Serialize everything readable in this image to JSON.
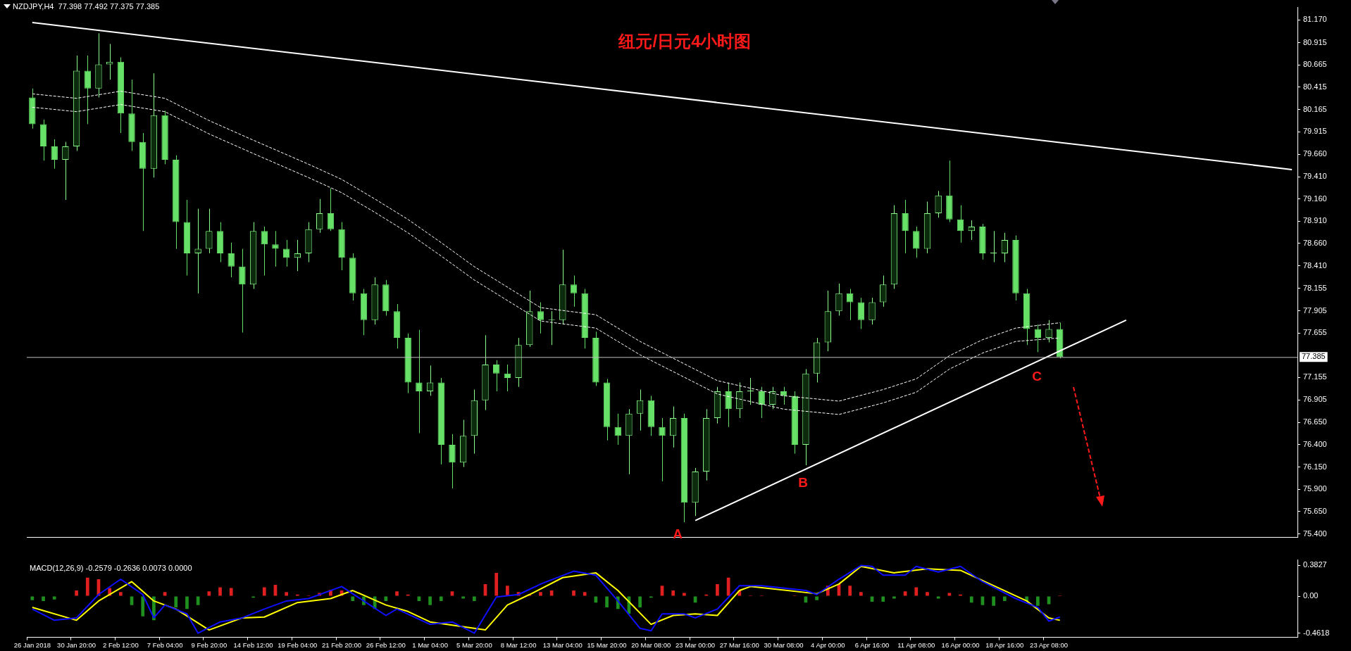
{
  "chart_data": [
    {
      "type": "candlestick",
      "title": "纽元/日元4小时图",
      "subtitle": "NZDJPY,H4  77.398 77.492 77.375 77.385",
      "colors": [
        "#66e066",
        "#66e066",
        "#66e066",
        "#8cff8c",
        "#8cff8c",
        "#66e066",
        "#8cff8c",
        "#8cff8c",
        "#66e066",
        "#66e066",
        "#66e066",
        "#8cff8c",
        "#66e066",
        "#66e066",
        "#66e066",
        "#8cff8c",
        "#8cff8c",
        "#66e066",
        "#66e066",
        "#66e066",
        "#8cff8c",
        "#66e066",
        "#66e066",
        "#66e066",
        "#8cff8c",
        "#8cff8c",
        "#8cff8c",
        "#66e066",
        "#66e066",
        "#66e066",
        "#66e066",
        "#8cff8c",
        "#66e066",
        "#66e066",
        "#66e066",
        "#66e066",
        "#8cff8c",
        "#66e066",
        "#66e066",
        "#8cff8c",
        "#8cff8c",
        "#8cff8c",
        "#66e066",
        "#66e066",
        "#8cff8c",
        "#8cff8c",
        "#66e066",
        "#8cff8c",
        "#8cff8c",
        "#66e066",
        "#66e066",
        "#66e066",
        "#66e066",
        "#66e066",
        "#8cff8c",
        "#8cff8c",
        "#66e066",
        "#66e066",
        "#8cff8c",
        "#66e066",
        "#8cff8c",
        "#8cff8c",
        "#8cff8c",
        "#66e066",
        "#8cff8c",
        "#8cff8c",
        "#66e066",
        "#8cff8c",
        "#66e066",
        "#66e066",
        "#8cff8c",
        "#8cff8c",
        "#8cff8c",
        "#8cff8c",
        "#66e066",
        "#66e066",
        "#8cff8c",
        "#8cff8c",
        "#8cff8c",
        "#66e066",
        "#66e066",
        "#8cff8c",
        "#8cff8c",
        "#66e066",
        "#66e066",
        "#8cff8c",
        "#66e066",
        "#8cff8c",
        "#8cff8c",
        "#66e066",
        "#66e066",
        "#66e066",
        "#8cff8c",
        "#66e066",
        null,
        null,
        null,
        null,
        null,
        null,
        null,
        null,
        null,
        null,
        null,
        null,
        null,
        null,
        null,
        null,
        null,
        null,
        null,
        null,
        null
      ],
      "categories": [
        null,
        null,
        null,
        null,
        null,
        null,
        null,
        null,
        null,
        null,
        null,
        null,
        null,
        null,
        null,
        null,
        null,
        null,
        null,
        null,
        null,
        null,
        null,
        null,
        null,
        null,
        null,
        null,
        null,
        null,
        null,
        null,
        null,
        null,
        null,
        null,
        null,
        null,
        null,
        null,
        null,
        null,
        null,
        null,
        null,
        null,
        null,
        null,
        null,
        null,
        null,
        null,
        null,
        null,
        null,
        null,
        null,
        null,
        null,
        null,
        null,
        null,
        null,
        null,
        null,
        null,
        null,
        null,
        null,
        null,
        null,
        null,
        null,
        null,
        null,
        null,
        null,
        null,
        null,
        null,
        null,
        null,
        null,
        null,
        null,
        null,
        null,
        null,
        null,
        null,
        null,
        null,
        null,
        null,
        null,
        null,
        null,
        null,
        null,
        null,
        null,
        null,
        null,
        null,
        null,
        null,
        null,
        null,
        null,
        null,
        null,
        null,
        null,
        null,
        null
      ],
      "ohlc": [
        [
          80.3,
          80.4,
          79.95,
          80.0
        ],
        [
          80.0,
          80.05,
          79.59,
          79.75
        ],
        [
          79.75,
          79.83,
          79.5,
          79.6
        ],
        [
          79.6,
          79.8,
          79.15,
          79.75
        ],
        [
          79.75,
          80.77,
          79.7,
          80.6
        ],
        [
          80.6,
          80.77,
          80.0,
          80.4
        ],
        [
          80.4,
          81.02,
          80.3,
          80.67
        ],
        [
          80.67,
          80.9,
          80.5,
          80.7
        ],
        [
          80.7,
          80.75,
          79.9,
          80.12
        ],
        [
          80.12,
          80.5,
          79.7,
          79.8
        ],
        [
          79.8,
          79.9,
          78.8,
          79.5
        ],
        [
          79.5,
          80.57,
          79.4,
          80.1
        ],
        [
          80.1,
          80.15,
          79.55,
          79.6
        ],
        [
          79.6,
          79.65,
          78.6,
          78.9
        ],
        [
          78.9,
          79.15,
          78.3,
          78.55
        ],
        [
          78.55,
          79.05,
          78.1,
          78.6
        ],
        [
          78.6,
          79.05,
          78.55,
          78.8
        ],
        [
          78.8,
          78.9,
          78.45,
          78.55
        ],
        [
          78.55,
          78.67,
          78.28,
          78.4
        ],
        [
          78.4,
          78.6,
          77.66,
          78.2
        ],
        [
          78.2,
          78.9,
          78.15,
          78.8
        ],
        [
          78.8,
          78.85,
          78.3,
          78.65
        ],
        [
          78.65,
          78.8,
          78.4,
          78.6
        ],
        [
          78.6,
          78.7,
          78.4,
          78.5
        ],
        [
          78.5,
          78.7,
          78.35,
          78.55
        ],
        [
          78.55,
          78.9,
          78.45,
          78.82
        ],
        [
          78.82,
          79.16,
          78.78,
          79.0
        ],
        [
          79.0,
          79.28,
          78.8,
          78.82
        ],
        [
          78.82,
          78.9,
          78.36,
          78.5
        ],
        [
          78.5,
          78.55,
          78.02,
          78.1
        ],
        [
          78.1,
          78.15,
          77.63,
          77.8
        ],
        [
          77.8,
          78.28,
          77.75,
          78.2
        ],
        [
          78.2,
          78.25,
          77.85,
          77.9
        ],
        [
          77.9,
          77.98,
          77.48,
          77.6
        ],
        [
          77.6,
          77.65,
          76.98,
          77.1
        ],
        [
          77.1,
          77.69,
          76.53,
          77.0
        ],
        [
          77.0,
          77.29,
          76.95,
          77.1
        ],
        [
          77.1,
          77.15,
          76.18,
          76.4
        ],
        [
          76.4,
          76.52,
          75.91,
          76.2
        ],
        [
          76.2,
          76.68,
          76.15,
          76.5
        ],
        [
          76.5,
          77.02,
          76.3,
          76.9
        ],
        [
          76.9,
          77.63,
          76.79,
          77.3
        ],
        [
          77.3,
          77.35,
          77.0,
          77.2
        ],
        [
          77.2,
          77.3,
          77.0,
          77.15
        ],
        [
          77.15,
          77.6,
          77.05,
          77.52
        ],
        [
          77.52,
          78.13,
          77.5,
          77.9
        ],
        [
          77.9,
          78.0,
          77.65,
          77.8
        ],
        [
          77.8,
          77.9,
          77.52,
          77.8
        ],
        [
          77.8,
          78.59,
          77.75,
          78.2
        ],
        [
          78.2,
          78.3,
          77.95,
          78.1
        ],
        [
          78.1,
          78.15,
          77.48,
          77.6
        ],
        [
          77.6,
          77.67,
          77.06,
          77.1
        ],
        [
          77.1,
          77.14,
          76.45,
          76.6
        ],
        [
          76.6,
          76.75,
          76.4,
          76.5
        ],
        [
          76.5,
          76.8,
          76.07,
          76.75
        ],
        [
          76.75,
          77.02,
          76.56,
          76.9
        ],
        [
          76.9,
          76.95,
          76.5,
          76.6
        ],
        [
          76.6,
          76.7,
          75.99,
          76.5
        ],
        [
          76.5,
          76.83,
          76.37,
          76.7
        ],
        [
          76.7,
          76.75,
          75.53,
          75.75
        ],
        [
          75.75,
          76.14,
          75.6,
          76.1
        ],
        [
          76.1,
          76.8,
          76.0,
          76.7
        ],
        [
          76.7,
          77.05,
          76.64,
          77.0
        ],
        [
          77.0,
          77.1,
          76.6,
          76.8
        ],
        [
          76.8,
          77.1,
          76.7,
          77.0
        ],
        [
          77.0,
          77.15,
          76.85,
          77.0
        ],
        [
          77.0,
          77.05,
          76.7,
          76.85
        ],
        [
          76.85,
          77.05,
          76.8,
          77.0
        ],
        [
          77.0,
          77.05,
          76.85,
          76.95
        ],
        [
          76.95,
          77.0,
          76.3,
          76.4
        ],
        [
          76.4,
          77.25,
          76.17,
          77.2
        ],
        [
          77.2,
          77.6,
          77.1,
          77.55
        ],
        [
          77.55,
          78.13,
          77.45,
          77.9
        ],
        [
          77.9,
          78.21,
          77.85,
          78.1
        ],
        [
          78.1,
          78.15,
          77.8,
          78.0
        ],
        [
          78.0,
          78.05,
          77.7,
          77.8
        ],
        [
          77.8,
          78.05,
          77.75,
          78.0
        ],
        [
          78.0,
          78.3,
          77.95,
          78.2
        ],
        [
          78.2,
          79.09,
          78.15,
          79.0
        ],
        [
          79.0,
          79.15,
          78.55,
          78.8
        ],
        [
          78.8,
          78.85,
          78.5,
          78.6
        ],
        [
          78.6,
          79.13,
          78.55,
          79.0
        ],
        [
          79.0,
          79.25,
          78.95,
          79.2
        ],
        [
          79.2,
          79.59,
          78.9,
          78.93
        ],
        [
          78.93,
          79.09,
          78.67,
          78.8
        ],
        [
          78.8,
          78.92,
          78.7,
          78.85
        ],
        [
          78.85,
          78.88,
          78.48,
          78.55
        ],
        [
          78.55,
          78.8,
          78.45,
          78.55
        ],
        [
          78.55,
          78.78,
          78.45,
          78.7
        ],
        [
          78.7,
          78.75,
          78.02,
          78.1
        ],
        [
          78.1,
          78.15,
          77.52,
          77.7
        ],
        [
          77.7,
          77.75,
          77.44,
          77.6
        ],
        [
          77.6,
          77.8,
          77.55,
          77.7
        ],
        [
          77.7,
          77.77,
          77.37,
          77.385
        ],
        null,
        null,
        null,
        null,
        null,
        null,
        null,
        null,
        null,
        null,
        null,
        null,
        null,
        null,
        null,
        null,
        null,
        null,
        null,
        null,
        null
      ],
      "series": [
        {
          "type": "line",
          "color": "#ffffff",
          "line_style": "dashed",
          "values": [
            80.34,
            null,
            null,
            null,
            80.29,
            null,
            null,
            null,
            80.37,
            null,
            null,
            null,
            80.29,
            null,
            null,
            null,
            80.04,
            null,
            null,
            null,
            79.82,
            null,
            null,
            null,
            null,
            79.55,
            null,
            null,
            79.38,
            null,
            null,
            79.16,
            null,
            null,
            78.93,
            null,
            null,
            78.67,
            null,
            null,
            78.4,
            null,
            null,
            null,
            null,
            null,
            77.94,
            null,
            null,
            null,
            null,
            77.86,
            null,
            null,
            null,
            77.56,
            null,
            null,
            null,
            null,
            null,
            null,
            77.12,
            null,
            null,
            null,
            null,
            null,
            76.95,
            null,
            null,
            null,
            null,
            76.89,
            null,
            null,
            null,
            77.02,
            null,
            null,
            77.14,
            null,
            null,
            77.4,
            null,
            null,
            77.58,
            null,
            null,
            77.71,
            null,
            null,
            null,
            77.77,
            null,
            null,
            null,
            null,
            null,
            null,
            null,
            null,
            null,
            null,
            null,
            null,
            null,
            null,
            null,
            null,
            null,
            null,
            null,
            null,
            null
          ]
        },
        {
          "type": "line",
          "color": "#ffffff",
          "line_style": "dashed",
          "values": [
            80.19,
            null,
            null,
            null,
            80.14,
            null,
            null,
            null,
            80.22,
            null,
            null,
            null,
            80.14,
            null,
            null,
            null,
            79.89,
            null,
            null,
            null,
            79.67,
            null,
            null,
            null,
            null,
            79.4,
            null,
            null,
            79.23,
            null,
            null,
            79.01,
            null,
            null,
            78.78,
            null,
            null,
            78.52,
            null,
            null,
            78.25,
            null,
            null,
            null,
            null,
            null,
            77.79,
            null,
            null,
            null,
            null,
            77.71,
            null,
            null,
            null,
            77.41,
            null,
            null,
            null,
            null,
            null,
            null,
            76.97,
            null,
            null,
            null,
            null,
            null,
            76.8,
            null,
            null,
            null,
            null,
            76.74,
            null,
            null,
            null,
            76.87,
            null,
            null,
            76.99,
            null,
            null,
            77.25,
            null,
            null,
            77.43,
            null,
            null,
            77.56,
            null,
            null,
            null,
            77.6,
            null,
            null,
            null,
            null,
            null,
            null,
            null,
            null,
            null,
            null,
            null,
            null,
            null,
            null,
            null,
            null,
            null,
            null,
            null,
            null,
            null
          ]
        },
        {
          "type": "line",
          "color": "#ffffff",
          "line_style": "solid",
          "values": [
            81.14,
            null,
            null,
            null,
            null,
            null,
            null,
            null,
            null,
            null,
            null,
            null,
            null,
            null,
            null,
            null,
            null,
            null,
            null,
            null,
            null,
            null,
            null,
            null,
            null,
            null,
            null,
            null,
            null,
            null,
            null,
            null,
            null,
            null,
            null,
            null,
            null,
            null,
            null,
            null,
            null,
            null,
            null,
            null,
            null,
            null,
            null,
            null,
            null,
            null,
            null,
            null,
            null,
            null,
            null,
            null,
            null,
            null,
            null,
            null,
            null,
            null,
            null,
            null,
            null,
            null,
            null,
            null,
            null,
            null,
            null,
            null,
            null,
            null,
            null,
            null,
            null,
            null,
            null,
            null,
            null,
            null,
            null,
            null,
            null,
            null,
            null,
            null,
            null,
            null,
            null,
            null,
            null,
            null,
            null,
            null,
            null,
            null,
            null,
            null,
            null,
            null,
            null,
            null,
            null,
            null,
            null,
            null,
            null,
            null,
            null,
            null,
            null,
            null,
            79.49
          ]
        },
        {
          "type": "line",
          "color": "#ffffff",
          "line_style": "solid",
          "values": [
            null,
            null,
            null,
            null,
            null,
            null,
            null,
            null,
            null,
            null,
            null,
            null,
            null,
            null,
            null,
            null,
            null,
            null,
            null,
            null,
            null,
            null,
            null,
            null,
            null,
            null,
            null,
            null,
            null,
            null,
            null,
            null,
            null,
            null,
            null,
            null,
            null,
            null,
            null,
            null,
            null,
            null,
            null,
            null,
            null,
            null,
            null,
            null,
            null,
            null,
            null,
            null,
            null,
            null,
            null,
            null,
            null,
            null,
            null,
            null,
            75.55,
            null,
            null,
            null,
            null,
            null,
            null,
            null,
            null,
            null,
            null,
            null,
            null,
            null,
            null,
            null,
            null,
            null,
            null,
            null,
            null,
            null,
            null,
            null,
            null,
            null,
            null,
            null,
            null,
            null,
            null,
            null,
            null,
            null,
            null,
            null,
            null,
            null,
            null,
            77.8,
            null,
            null,
            null,
            null,
            null,
            null,
            null,
            null,
            null,
            null,
            null,
            null,
            null,
            null,
            null
          ]
        }
      ],
      "ylim": [
        75.36,
        81.31
      ],
      "yticks": [
        {
          "value": 81.17,
          "label": "81.170"
        },
        80.915,
        80.665,
        80.415,
        80.165,
        79.915,
        {
          "value": 79.66,
          "label": "79.660"
        },
        {
          "value": 79.41,
          "label": "79.410"
        },
        {
          "value": 79.16,
          "label": "79.160"
        },
        {
          "value": 78.91,
          "label": "78.910"
        },
        {
          "value": 78.66,
          "label": "78.660"
        },
        {
          "value": 78.41,
          "label": "78.410"
        },
        78.155,
        77.905,
        77.655,
        77.155,
        76.905,
        {
          "value": 76.65,
          "label": "76.650"
        },
        {
          "value": 76.4,
          "label": "76.400"
        },
        {
          "value": 76.15,
          "label": "76.150"
        },
        {
          "value": 75.9,
          "label": "75.900"
        },
        {
          "value": 75.65,
          "label": "75.650"
        },
        {
          "value": 75.4,
          "label": "75.400"
        }
      ],
      "ref_lines": [
        {
          "axis": "y",
          "value": 77.385,
          "label": "77.385",
          "color": "#c0c0c0"
        }
      ],
      "annotations": [
        "A",
        "B",
        "C"
      ]
    },
    {
      "type": "bar",
      "title": "MACD(12,26,9) -0.2579 -0.2636 0.0073 0.0000",
      "categories": [
        "26 Jan 2018",
        null,
        null,
        null,
        "30 Jan 20:00",
        null,
        null,
        null,
        "2 Feb 12:00",
        null,
        null,
        null,
        "7 Feb 04:00",
        null,
        null,
        null,
        "9 Feb 20:00",
        null,
        null,
        null,
        "14 Feb 12:00",
        null,
        null,
        null,
        "19 Feb 04:00",
        null,
        null,
        null,
        "21 Feb 20:00",
        null,
        null,
        null,
        "26 Feb 12:00",
        null,
        null,
        null,
        "1 Mar 04:00",
        null,
        null,
        null,
        "5 Mar 20:00",
        null,
        null,
        null,
        "8 Mar 12:00",
        null,
        null,
        null,
        "13 Mar 04:00",
        null,
        null,
        null,
        "15 Mar 20:00",
        null,
        null,
        null,
        "20 Mar 08:00",
        null,
        null,
        null,
        "23 Mar 00:00",
        null,
        null,
        null,
        "27 Mar 16:00",
        null,
        null,
        null,
        "30 Mar 08:00",
        null,
        null,
        null,
        "4 Apr 00:00",
        null,
        null,
        null,
        "6 Apr 16:00",
        null,
        null,
        null,
        "11 Apr 08:00",
        null,
        null,
        null,
        "16 Apr 00:00",
        null,
        null,
        null,
        "18 Apr 16:00",
        null,
        null,
        null,
        "23 Apr 08:00",
        null,
        null,
        null,
        null,
        null,
        null,
        null,
        null,
        null,
        null,
        null,
        null,
        null,
        null,
        null,
        null,
        null,
        null,
        null,
        null,
        null,
        null
      ],
      "series": [
        {
          "type": "bar",
          "color": "#e02020",
          "values": [
            null,
            null,
            null,
            null,
            0.07,
            0.23,
            0.21,
            0.1,
            0.05,
            null,
            null,
            null,
            0.05,
            null,
            null,
            null,
            0.06,
            0.11,
            0.1,
            0.0,
            null,
            0.11,
            0.14,
            0.05,
            0.02,
            0.01,
            0.04,
            0.08,
            0.07,
            null,
            null,
            null,
            null,
            0.06,
            0.02,
            null,
            null,
            null,
            0.06,
            null,
            null,
            0.15,
            0.29,
            0.13,
            0.05,
            0.02,
            0.05,
            0.07,
            0.0,
            0.07,
            0.05,
            null,
            null,
            null,
            null,
            null,
            null,
            0.13,
            0.07,
            0.04,
            null,
            0.02,
            0.15,
            0.23,
            0.07,
            0.01,
            0.01,
            0.0,
            0.0,
            0.01,
            null,
            null,
            0.13,
            0.15,
            0.13,
            0.05,
            null,
            null,
            null,
            0.06,
            0.11,
            0.05,
            null,
            0.04,
            0.02,
            null,
            null,
            null,
            null,
            null,
            null,
            null,
            null,
            0.01,
            null,
            null,
            null,
            null,
            null,
            null,
            null,
            null,
            null,
            null,
            null,
            null,
            null,
            null,
            null,
            null,
            null,
            null,
            null,
            null,
            null
          ]
        },
        {
          "type": "bar",
          "color": "#1f8f1f",
          "values": [
            -0.05,
            -0.06,
            -0.04,
            null,
            null,
            null,
            null,
            null,
            null,
            -0.11,
            -0.25,
            -0.3,
            null,
            -0.14,
            -0.16,
            -0.11,
            null,
            null,
            null,
            null,
            -0.02,
            null,
            null,
            null,
            null,
            null,
            null,
            null,
            null,
            -0.06,
            -0.11,
            -0.16,
            -0.06,
            null,
            null,
            -0.06,
            -0.11,
            -0.06,
            null,
            -0.03,
            -0.06,
            null,
            null,
            null,
            null,
            null,
            null,
            null,
            null,
            null,
            null,
            -0.08,
            -0.14,
            -0.16,
            -0.22,
            -0.14,
            -0.02,
            null,
            null,
            null,
            -0.08,
            null,
            null,
            null,
            null,
            null,
            null,
            null,
            null,
            null,
            -0.08,
            -0.05,
            null,
            null,
            null,
            null,
            -0.07,
            -0.07,
            -0.03,
            null,
            null,
            null,
            -0.03,
            null,
            null,
            -0.08,
            -0.11,
            -0.12,
            -0.06,
            null,
            -0.06,
            -0.12,
            -0.1,
            null,
            null,
            null,
            null,
            null,
            null,
            null,
            null,
            null,
            null,
            null,
            null,
            null,
            null,
            null,
            null,
            null,
            null,
            null,
            null,
            null,
            null
          ]
        },
        {
          "type": "line",
          "color": "#1010ff",
          "values": [
            -0.16,
            null,
            -0.3,
            null,
            -0.27,
            null,
            0.02,
            null,
            0.21,
            null,
            0.02,
            -0.27,
            -0.11,
            null,
            -0.22,
            -0.46,
            null,
            -0.32,
            null,
            -0.27,
            null,
            -0.16,
            null,
            -0.06,
            null,
            -0.03,
            null,
            null,
            0.12,
            null,
            -0.06,
            null,
            -0.24,
            -0.16,
            null,
            null,
            -0.35,
            null,
            -0.32,
            null,
            -0.46,
            null,
            -0.01,
            null,
            0.02,
            null,
            0.15,
            null,
            null,
            0.31,
            null,
            0.26,
            null,
            -0.06,
            null,
            -0.4,
            -0.43,
            -0.22,
            null,
            -0.22,
            -0.27,
            null,
            -0.16,
            null,
            0.13,
            null,
            0.13,
            null,
            null,
            null,
            0.07,
            0.02,
            null,
            0.21,
            null,
            0.38,
            0.37,
            0.26,
            null,
            0.26,
            0.37,
            null,
            0.3,
            null,
            0.37,
            null,
            0.18,
            null,
            null,
            -0.03,
            null,
            -0.14,
            -0.31,
            -0.26,
            null,
            null,
            null,
            null,
            null,
            null,
            null,
            null,
            null,
            null,
            null,
            null,
            null,
            null,
            null,
            null,
            null,
            null,
            null,
            null,
            null
          ]
        },
        {
          "type": "line",
          "color": "#ffff00",
          "values": [
            -0.14,
            null,
            null,
            null,
            -0.3,
            null,
            -0.06,
            null,
            null,
            0.18,
            null,
            -0.06,
            null,
            -0.16,
            null,
            null,
            -0.42,
            null,
            null,
            -0.27,
            null,
            -0.26,
            null,
            null,
            -0.08,
            null,
            null,
            -0.03,
            null,
            0.07,
            null,
            null,
            -0.11,
            null,
            -0.19,
            null,
            -0.32,
            null,
            null,
            -0.38,
            null,
            -0.42,
            null,
            -0.11,
            null,
            0.02,
            null,
            null,
            0.23,
            null,
            null,
            0.29,
            null,
            0.07,
            null,
            null,
            -0.35,
            null,
            -0.24,
            null,
            -0.22,
            null,
            -0.24,
            null,
            0.07,
            0.12,
            null,
            null,
            null,
            null,
            null,
            0.03,
            null,
            0.15,
            null,
            0.37,
            null,
            null,
            0.29,
            null,
            null,
            0.34,
            null,
            null,
            0.32,
            null,
            null,
            0.13,
            null,
            null,
            -0.06,
            null,
            -0.27,
            -0.3,
            null,
            null,
            null,
            null,
            null,
            null,
            null,
            null,
            null,
            null,
            null,
            null,
            null,
            null,
            null,
            null,
            null,
            null,
            null,
            null,
            null
          ]
        }
      ],
      "ylim": [
        -0.512,
        0.45
      ],
      "yticks": [
        0.3827,
        {
          "value": 0,
          "label": "0.00"
        },
        -0.4618
      ]
    }
  ]
}
